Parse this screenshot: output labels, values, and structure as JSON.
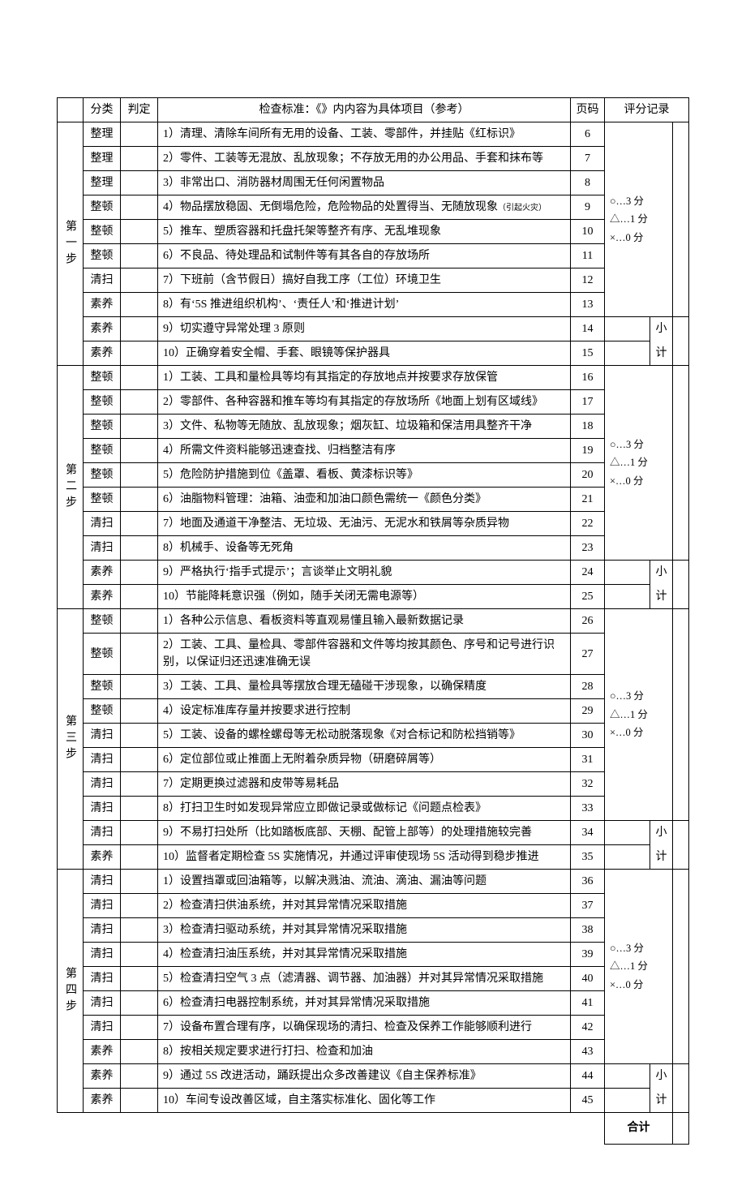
{
  "header": {
    "cat": "分类",
    "judge": "判定",
    "std": "检查标准：《》内内容为具体项目（参考）",
    "page": "页码",
    "score": "评分记录"
  },
  "scoring": {
    "three": "○…3 分",
    "one": "△…1 分",
    "zero": "×…0 分",
    "subtotal_a": "小",
    "subtotal_b": "计"
  },
  "steps": [
    {
      "label": "第一步",
      "rows": [
        {
          "cat": "整理",
          "std": "1）清理、清除车间所有无用的设备、工装、零部件，并挂贴《红标识》",
          "page": "6"
        },
        {
          "cat": "整理",
          "std": "2）零件、工装等无混放、乱放现象；不存放无用的办公用品、手套和抹布等",
          "page": "7"
        },
        {
          "cat": "整理",
          "std": "3）非常出口、消防器材周围无任何闲置物品",
          "page": "8"
        },
        {
          "cat": "整顿",
          "std": "4）物品摆放稳固、无倒塌危险，危险物品的处置得当、无随放现象",
          "note": "（引起火灾）",
          "page": "9"
        },
        {
          "cat": "整顿",
          "std": "5）推车、塑质容器和托盘托架等整齐有序、无乱堆现象",
          "page": "10"
        },
        {
          "cat": "整顿",
          "std": "6）不良品、待处理品和试制件等有其各自的存放场所",
          "page": "11"
        },
        {
          "cat": "清扫",
          "std": "7）下班前（含节假日）搞好自我工序（工位）环境卫生",
          "page": "12"
        },
        {
          "cat": "素养",
          "std": "8）有‘5S 推进组织机构’、‘责任人’和‘推进计划’",
          "page": "13"
        },
        {
          "cat": "素养",
          "std": "9）切实遵守异常处理 3 原则",
          "page": "14"
        },
        {
          "cat": "素养",
          "std": "10）正确穿着安全帽、手套、眼镜等保护器具",
          "page": "15"
        }
      ]
    },
    {
      "label": "第二步",
      "rows": [
        {
          "cat": "整顿",
          "std": "1）工装、工具和量检具等均有其指定的存放地点并按要求存放保管",
          "page": "16"
        },
        {
          "cat": "整顿",
          "std": "2）零部件、各种容器和推车等均有其指定的存放场所《地面上划有区域线》",
          "page": "17"
        },
        {
          "cat": "整顿",
          "std": "3）文件、私物等无随放、乱放现象；烟灰缸、垃圾箱和保洁用具整齐干净",
          "page": "18"
        },
        {
          "cat": "整顿",
          "std": "4）所需文件资料能够迅速查找、归档整洁有序",
          "page": "19"
        },
        {
          "cat": "整顿",
          "std": "5）危险防护措施到位《盖罩、看板、黄漆标识等》",
          "page": "20"
        },
        {
          "cat": "整顿",
          "std": "6）油脂物料管理：油箱、油壶和加油口颜色需统一《颜色分类》",
          "page": "21"
        },
        {
          "cat": "清扫",
          "std": "7）地面及通道干净整洁、无垃圾、无油污、无泥水和铁屑等杂质异物",
          "page": "22"
        },
        {
          "cat": "清扫",
          "std": "8）机械手、设备等无死角",
          "page": "23"
        },
        {
          "cat": "素养",
          "std": "9）严格执行‘指手式提示’；言谈举止文明礼貌",
          "page": "24"
        },
        {
          "cat": "素养",
          "std": "10）节能降耗意识强（例如，随手关闭无需电源等）",
          "page": "25"
        }
      ]
    },
    {
      "label": "第三步",
      "rows": [
        {
          "cat": "整顿",
          "std": "1）各种公示信息、看板资料等直观易懂且输入最新数据记录",
          "page": "26"
        },
        {
          "cat": "整顿",
          "std": "2）工装、工具、量检具、零部件容器和文件等均按其颜色、序号和记号进行识别，以保证归还迅速准确无误",
          "page": "27"
        },
        {
          "cat": "整顿",
          "std": "3）工装、工具、量检具等摆放合理无磕碰干涉现象，以确保精度",
          "page": "28"
        },
        {
          "cat": "整顿",
          "std": "4）设定标准库存量并按要求进行控制",
          "page": "29"
        },
        {
          "cat": "清扫",
          "std": "5）工装、设备的螺栓螺母等无松动脱落现象《对合标记和防松挡销等》",
          "page": "30"
        },
        {
          "cat": "清扫",
          "std": "6）定位部位或止推面上无附着杂质异物（研磨碎屑等）",
          "page": "31"
        },
        {
          "cat": "清扫",
          "std": "7）定期更换过滤器和皮带等易耗品",
          "page": "32"
        },
        {
          "cat": "清扫",
          "std": "8）打扫卫生时如发现异常应立即做记录或做标记《问题点检表》",
          "page": "33"
        },
        {
          "cat": "清扫",
          "std": "9）不易打扫处所（比如踏板底部、天棚、配管上部等）的处理措施较完善",
          "page": "34"
        },
        {
          "cat": "素养",
          "std": "10）监督者定期检查 5S 实施情况，并通过评审使现场 5S 活动得到稳步推进",
          "page": "35"
        }
      ]
    },
    {
      "label": "第四步",
      "rows": [
        {
          "cat": "清扫",
          "std": "1）设置挡罩或回油箱等，以解决溅油、流油、滴油、漏油等问题",
          "page": "36"
        },
        {
          "cat": "清扫",
          "std": "2）检查清扫供油系统，并对其异常情况采取措施",
          "page": "37"
        },
        {
          "cat": "清扫",
          "std": "3）检查清扫驱动系统，并对其异常情况采取措施",
          "page": "38"
        },
        {
          "cat": "清扫",
          "std": "4）检查清扫油压系统，并对其异常情况采取措施",
          "page": "39"
        },
        {
          "cat": "清扫",
          "std": "5）检查清扫空气 3 点（滤清器、调节器、加油器）并对其异常情况采取措施",
          "page": "40"
        },
        {
          "cat": "清扫",
          "std": "6）检查清扫电器控制系统，并对其异常情况采取措施",
          "page": "41"
        },
        {
          "cat": "清扫",
          "std": "7）设备布置合理有序，以确保现场的清扫、检查及保养工作能够顺利进行",
          "page": "42"
        },
        {
          "cat": "素养",
          "std": "8）按相关规定要求进行打扫、检查和加油",
          "page": "43"
        },
        {
          "cat": "素养",
          "std": "9）通过 5S 改进活动，踊跃提出众多改善建议《自主保养标准》",
          "page": "44"
        },
        {
          "cat": "素养",
          "std": "10）车间专设改善区域，自主落实标准化、固化等工作",
          "page": "45"
        }
      ]
    }
  ],
  "total_label": "合计"
}
